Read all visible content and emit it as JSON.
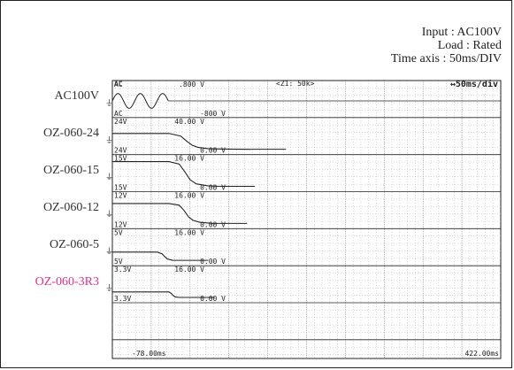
{
  "conditions": {
    "input": "Input : AC100V",
    "load": "Load : Rated",
    "time_axis": "Time axis : 50ms/DIV"
  },
  "screen": {
    "header_left": "AC",
    "header_mid": "<Z1: 50k>",
    "header_right": "↔50ms/div",
    "time_start": "-78.00ms",
    "time_end": "422.00ms"
  },
  "colors": {
    "ink": "#222222",
    "grid": "#888888",
    "accent": "#e8308a"
  },
  "chart_data": {
    "type": "line",
    "x_unit": "ms",
    "xlim": [
      -78,
      422
    ],
    "series": [
      {
        "name": "AC100V",
        "label_color": "#333333",
        "top_text": ".800 V",
        "top_left": "AC",
        "bottom_text": "-800 V",
        "bottom_left": "AC",
        "kind": "ac",
        "ac_end_ms": -6
      },
      {
        "name": "OZ-060-24",
        "label_color": "#333333",
        "top_text": "40.00 V",
        "top_left": "24V",
        "bottom_text": "0.00 V",
        "bottom_left": "24V",
        "kind": "decay",
        "points": [
          [
            -78,
            24
          ],
          [
            -5,
            24
          ],
          [
            10,
            20
          ],
          [
            18,
            12
          ],
          [
            25,
            6
          ],
          [
            32,
            3
          ],
          [
            45,
            1
          ],
          [
            70,
            0.3
          ],
          [
            100,
            0
          ]
        ],
        "baseline_end_ms": 100,
        "ymax": 40
      },
      {
        "name": "OZ-060-15",
        "label_color": "#333333",
        "top_text": "16.00 V",
        "top_left": "15V",
        "bottom_text": "0.00 V",
        "bottom_left": "15V",
        "kind": "decay",
        "points": [
          [
            -78,
            15
          ],
          [
            -5,
            15
          ],
          [
            8,
            13.5
          ],
          [
            15,
            9
          ],
          [
            22,
            4
          ],
          [
            30,
            1.5
          ],
          [
            45,
            0.3
          ],
          [
            60,
            0
          ]
        ],
        "baseline_end_ms": 60,
        "ymax": 16
      },
      {
        "name": "OZ-060-12",
        "label_color": "#333333",
        "top_text": "16.00 V",
        "top_left": "12V",
        "bottom_text": "0.00 V",
        "bottom_left": "12V",
        "kind": "decay",
        "points": [
          [
            -78,
            12
          ],
          [
            -5,
            12
          ],
          [
            8,
            11
          ],
          [
            14,
            8
          ],
          [
            20,
            4
          ],
          [
            26,
            1.8
          ],
          [
            35,
            0.6
          ],
          [
            50,
            0
          ]
        ],
        "baseline_end_ms": 50,
        "ymax": 16
      },
      {
        "name": "OZ-060-5",
        "label_color": "#333333",
        "top_text": "16.00 V",
        "top_left": "5V",
        "bottom_text": "0.00 V",
        "bottom_left": "5V",
        "kind": "decay",
        "points": [
          [
            -78,
            5
          ],
          [
            -20,
            5
          ],
          [
            -14,
            4
          ],
          [
            -10,
            2
          ],
          [
            -7,
            0.8
          ],
          [
            0,
            0
          ]
        ],
        "baseline_end_ms": 0,
        "ymax": 16
      },
      {
        "name": "OZ-060-3R3",
        "label_color": "#e8308a",
        "top_text": "16.00 V",
        "top_left": "3.3V",
        "bottom_text": "0.00 V",
        "bottom_left": "3.3V",
        "kind": "decay",
        "points": [
          [
            -78,
            3.3
          ],
          [
            -5,
            3.3
          ],
          [
            -2,
            2.4
          ],
          [
            0,
            1.2
          ],
          [
            3,
            0.3
          ],
          [
            8,
            0
          ]
        ],
        "baseline_end_ms": 8,
        "ymax": 16
      }
    ]
  }
}
